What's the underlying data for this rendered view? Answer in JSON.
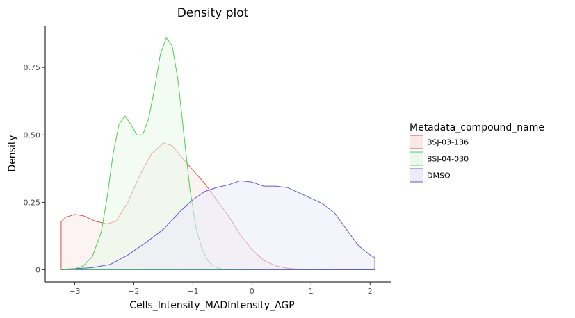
{
  "chart_data": {
    "type": "area",
    "title": "Density plot",
    "xlabel": "Cells_Intensity_MADIntensity_AGP",
    "ylabel": "Density",
    "xlim": [
      -3.5,
      2.35
    ],
    "ylim": [
      -0.045,
      0.905
    ],
    "x_ticks": [
      {
        "value": -3,
        "label": "−3"
      },
      {
        "value": -2,
        "label": "−2"
      },
      {
        "value": -1,
        "label": "−1"
      },
      {
        "value": 0,
        "label": "0"
      },
      {
        "value": 1,
        "label": "1"
      },
      {
        "value": 2,
        "label": "2"
      }
    ],
    "y_ticks": [
      {
        "value": 0,
        "label": "0"
      },
      {
        "value": 0.25,
        "label": "0.25"
      },
      {
        "value": 0.5,
        "label": "0.50"
      },
      {
        "value": 0.75,
        "label": "0.75"
      }
    ],
    "grid": false,
    "legend": {
      "title": "Metadata_compound_name",
      "position": "right"
    },
    "series": [
      {
        "name": "BSJ-03-136",
        "color": "#d9534f",
        "fill": "#fbe9e8",
        "x": [
          -3.23,
          -3.23,
          -3.15,
          -3.0,
          -2.85,
          -2.65,
          -2.45,
          -2.3,
          -2.1,
          -1.9,
          -1.7,
          -1.5,
          -1.35,
          -1.2,
          -1.0,
          -0.8,
          -0.6,
          -0.4,
          -0.2,
          0.0,
          0.2,
          0.4,
          0.6,
          0.8,
          1.0,
          1.2,
          1.5,
          1.8,
          2.08,
          2.08
        ],
        "y": [
          0.0,
          0.178,
          0.195,
          0.205,
          0.2,
          0.18,
          0.17,
          0.18,
          0.25,
          0.35,
          0.43,
          0.47,
          0.46,
          0.42,
          0.37,
          0.32,
          0.26,
          0.2,
          0.13,
          0.075,
          0.035,
          0.015,
          0.006,
          0.002,
          0.001,
          0.0,
          0.0,
          0.0,
          0.0,
          0.0
        ]
      },
      {
        "name": "BSJ-04-030",
        "color": "#4ccd4c",
        "fill": "#eafaea",
        "x": [
          -3.23,
          -3.0,
          -2.85,
          -2.7,
          -2.55,
          -2.45,
          -2.35,
          -2.25,
          -2.15,
          -2.05,
          -1.95,
          -1.85,
          -1.75,
          -1.65,
          -1.55,
          -1.45,
          -1.35,
          -1.25,
          -1.15,
          -1.05,
          -0.95,
          -0.85,
          -0.75,
          -0.65,
          -0.5,
          -0.3,
          0.0,
          0.5,
          1.0,
          1.5,
          2.08
        ],
        "y": [
          0.0,
          0.003,
          0.015,
          0.05,
          0.14,
          0.27,
          0.43,
          0.54,
          0.57,
          0.54,
          0.5,
          0.5,
          0.56,
          0.67,
          0.8,
          0.86,
          0.83,
          0.7,
          0.5,
          0.3,
          0.16,
          0.08,
          0.035,
          0.012,
          0.002,
          0.0,
          0.0,
          0.0,
          0.0,
          0.0,
          0.0
        ]
      },
      {
        "name": "DMSO",
        "color": "#5a5ad2",
        "fill": "#ebebf9",
        "x": [
          -3.23,
          -3.0,
          -2.7,
          -2.4,
          -2.1,
          -1.8,
          -1.5,
          -1.2,
          -1.0,
          -0.8,
          -0.6,
          -0.4,
          -0.2,
          0.0,
          0.2,
          0.4,
          0.6,
          0.8,
          1.0,
          1.2,
          1.4,
          1.6,
          1.8,
          2.0,
          2.08,
          2.08
        ],
        "y": [
          0.002,
          0.004,
          0.008,
          0.02,
          0.055,
          0.1,
          0.15,
          0.22,
          0.26,
          0.29,
          0.305,
          0.315,
          0.33,
          0.325,
          0.31,
          0.31,
          0.305,
          0.285,
          0.265,
          0.245,
          0.21,
          0.15,
          0.09,
          0.055,
          0.045,
          0.0
        ]
      }
    ]
  }
}
